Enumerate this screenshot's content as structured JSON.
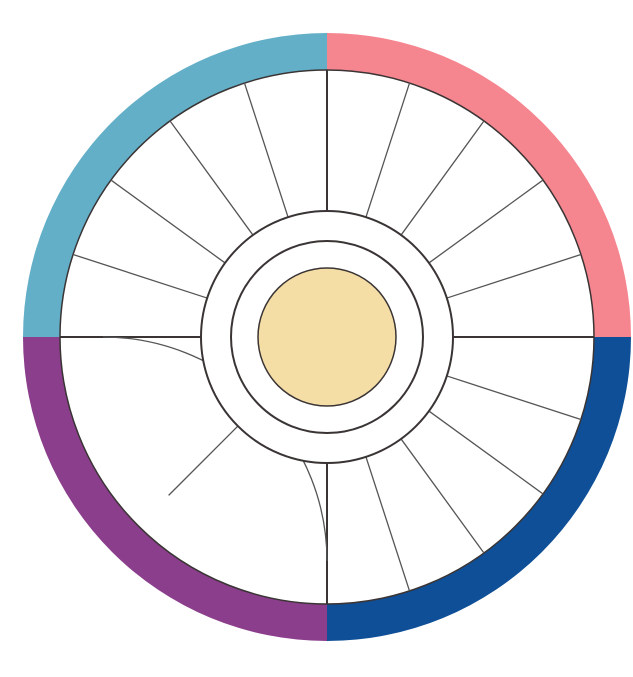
{
  "diagram": {
    "quadrants": [
      {
        "id": "top-left",
        "color": "#63afc8",
        "segments": 5,
        "inner_arc": false
      },
      {
        "id": "top-right",
        "color": "#f5858f",
        "segments": 5,
        "inner_arc": false
      },
      {
        "id": "bottom-right",
        "color": "#0e4f97",
        "segments": 5,
        "inner_arc": false
      },
      {
        "id": "bottom-left",
        "color": "#8a3e8b",
        "segments": 2,
        "inner_arc": true
      }
    ],
    "center_color": "#f5dea6",
    "line_color": "#3a3434"
  }
}
